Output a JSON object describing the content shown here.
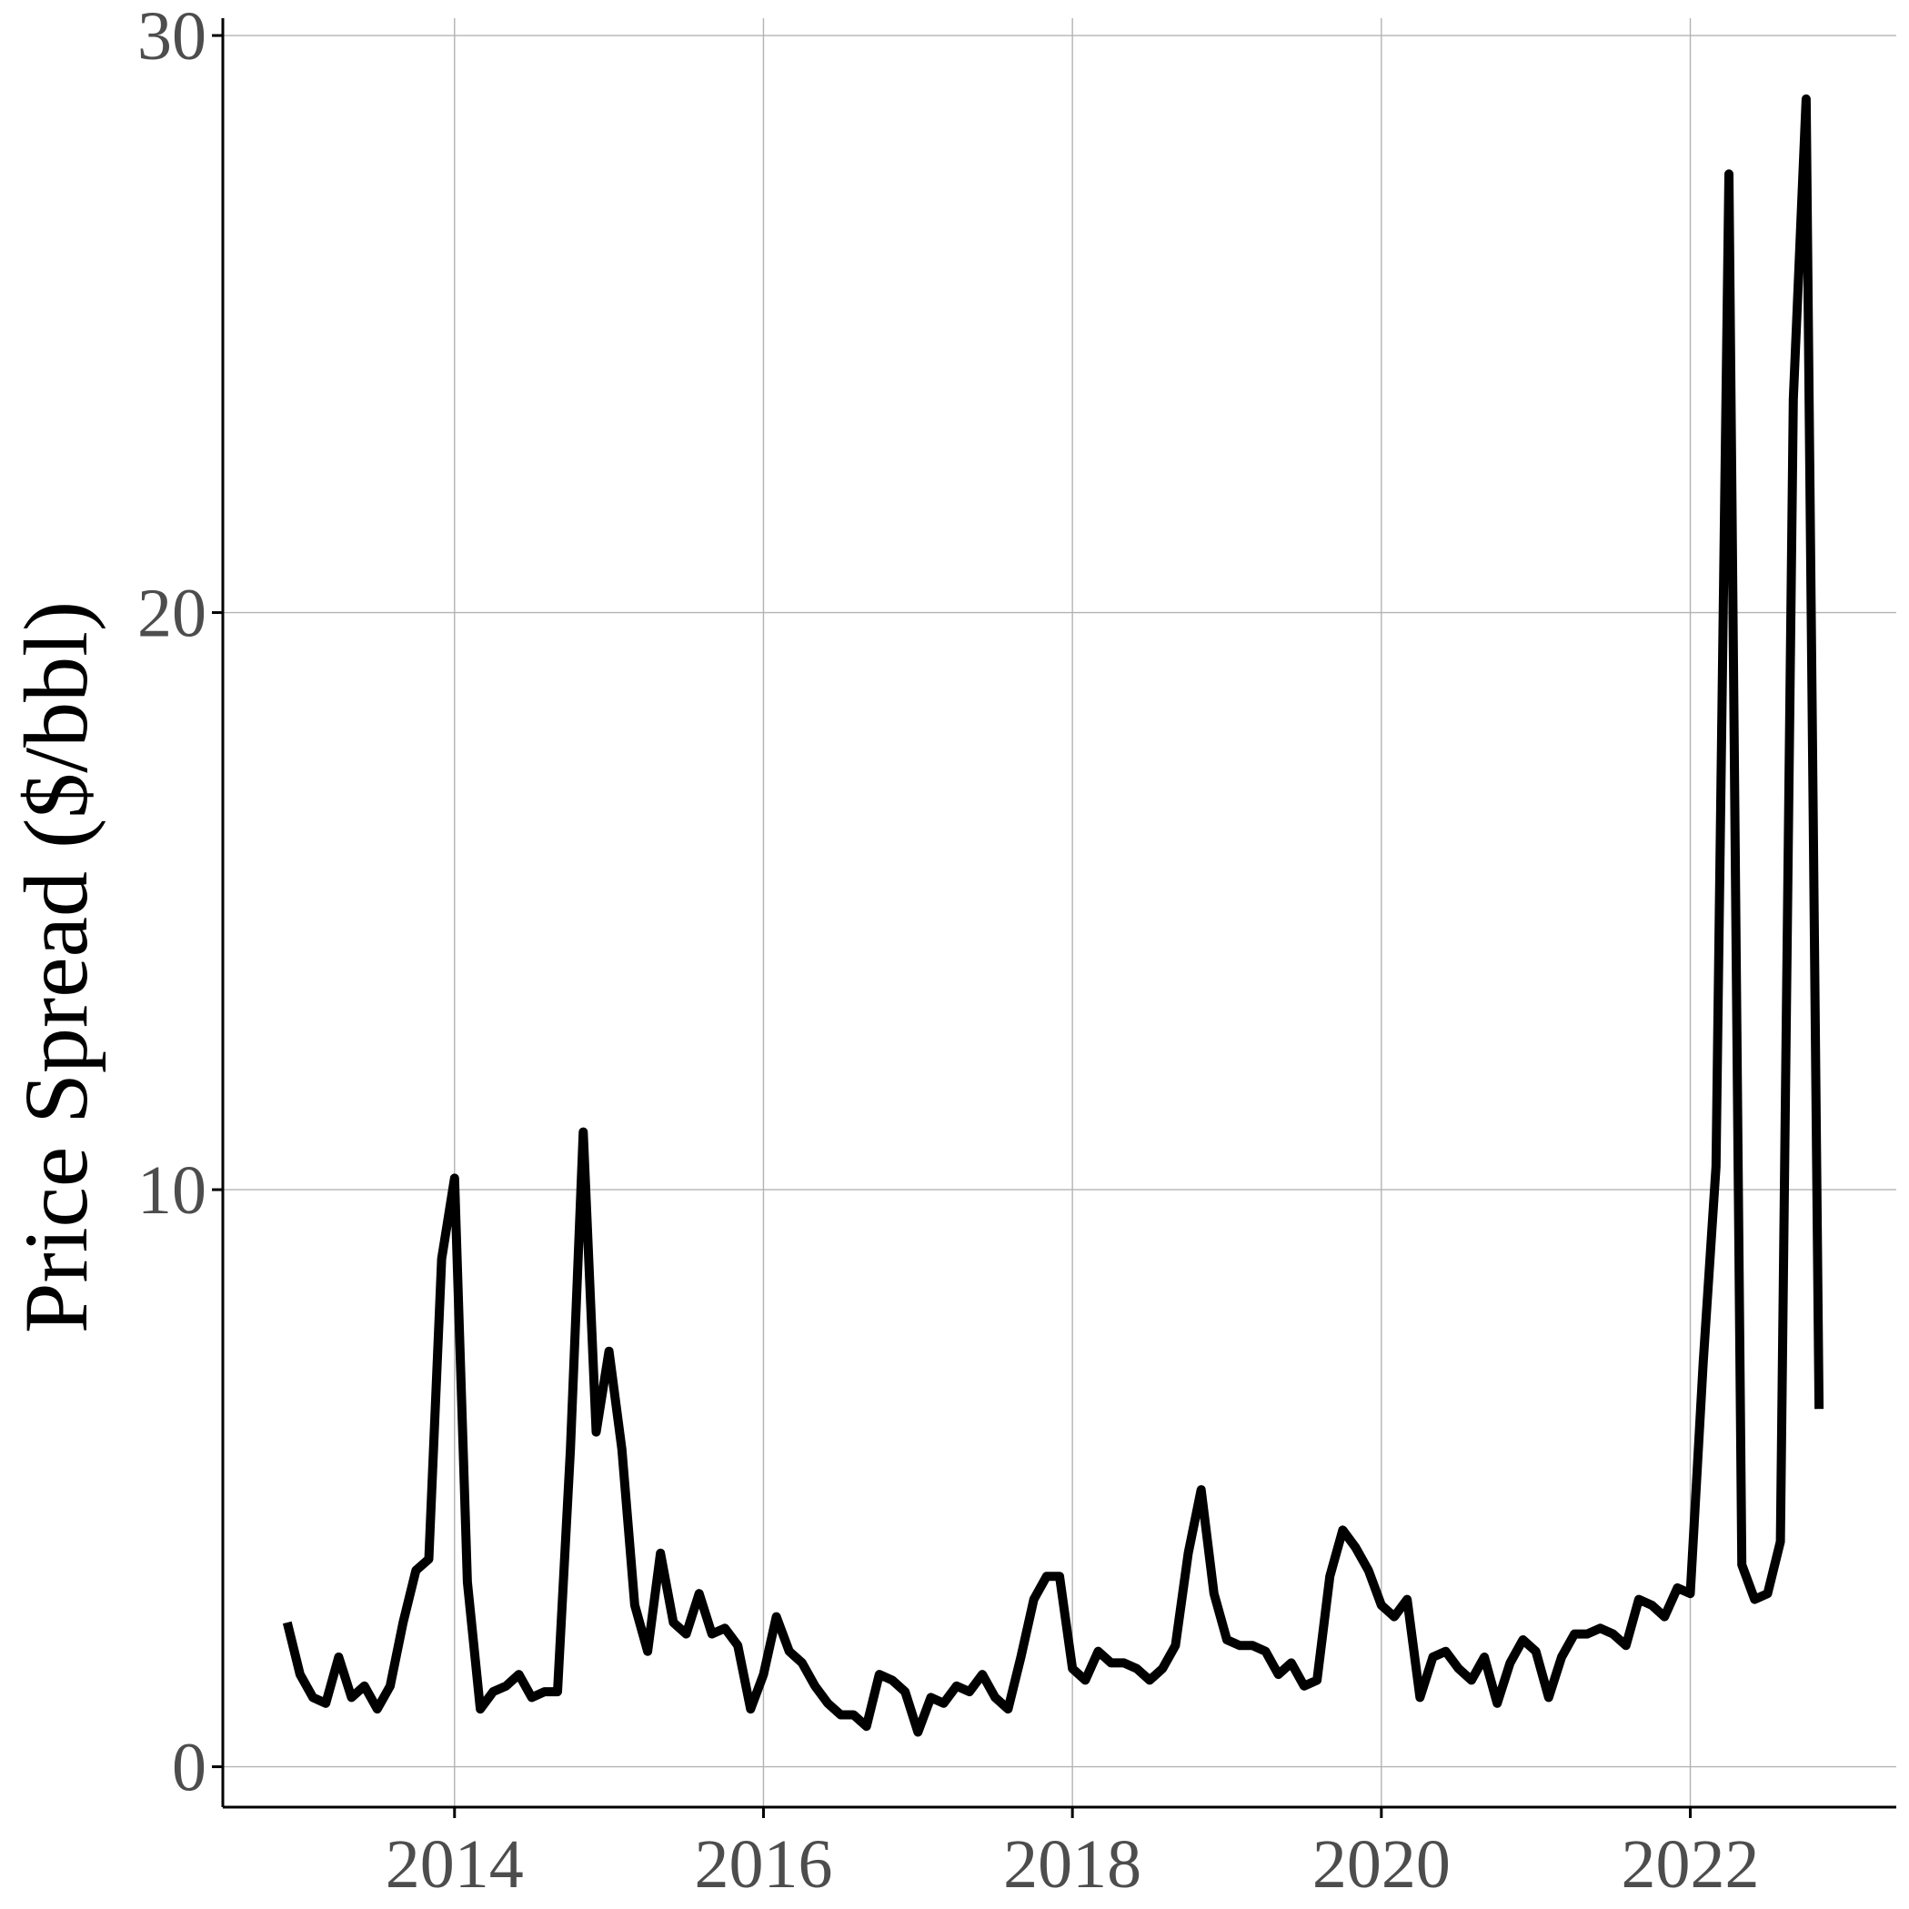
{
  "chart_data": {
    "type": "line",
    "title": "",
    "xlabel": "",
    "ylabel": "Price Spread ($/bbl)",
    "x_ticks": [
      "2014",
      "2016",
      "2018",
      "2020",
      "2022"
    ],
    "y_ticks": [
      "0",
      "10",
      "20",
      "30"
    ],
    "ylim": [
      -0.7,
      30.3
    ],
    "xlim": [
      "2012-07",
      "2023-05"
    ],
    "grid": "horizontal major",
    "legend": "none",
    "color": "#000000",
    "series": [
      {
        "values": [
          [
            "2012-12",
            2.5
          ],
          [
            "2013-01",
            1.6
          ],
          [
            "2013-02",
            1.2
          ],
          [
            "2013-03",
            1.1
          ],
          [
            "2013-04",
            1.9
          ],
          [
            "2013-05",
            1.2
          ],
          [
            "2013-06",
            1.4
          ],
          [
            "2013-07",
            1.0
          ],
          [
            "2013-08",
            1.4
          ],
          [
            "2013-09",
            2.5
          ],
          [
            "2013-10",
            3.4
          ],
          [
            "2013-11",
            3.6
          ],
          [
            "2013-12",
            8.8
          ],
          [
            "2014-01",
            10.2
          ],
          [
            "2014-02",
            3.2
          ],
          [
            "2014-03",
            1.0
          ],
          [
            "2014-04",
            1.3
          ],
          [
            "2014-05",
            1.4
          ],
          [
            "2014-06",
            1.6
          ],
          [
            "2014-07",
            1.2
          ],
          [
            "2014-08",
            1.3
          ],
          [
            "2014-09",
            1.3
          ],
          [
            "2014-10",
            5.5
          ],
          [
            "2014-11",
            11.0
          ],
          [
            "2014-12",
            5.8
          ],
          [
            "2015-01",
            7.2
          ],
          [
            "2015-02",
            5.5
          ],
          [
            "2015-03",
            2.8
          ],
          [
            "2015-04",
            2.0
          ],
          [
            "2015-05",
            3.7
          ],
          [
            "2015-06",
            2.5
          ],
          [
            "2015-07",
            2.3
          ],
          [
            "2015-08",
            3.0
          ],
          [
            "2015-09",
            2.3
          ],
          [
            "2015-10",
            2.4
          ],
          [
            "2015-11",
            2.1
          ],
          [
            "2015-12",
            1.0
          ],
          [
            "2016-01",
            1.6
          ],
          [
            "2016-02",
            2.6
          ],
          [
            "2016-03",
            2.0
          ],
          [
            "2016-04",
            1.8
          ],
          [
            "2016-05",
            1.4
          ],
          [
            "2016-06",
            1.1
          ],
          [
            "2016-07",
            0.9
          ],
          [
            "2016-08",
            0.9
          ],
          [
            "2016-09",
            0.7
          ],
          [
            "2016-10",
            1.6
          ],
          [
            "2016-11",
            1.5
          ],
          [
            "2016-12",
            1.3
          ],
          [
            "2017-01",
            0.6
          ],
          [
            "2017-02",
            1.2
          ],
          [
            "2017-03",
            1.1
          ],
          [
            "2017-04",
            1.4
          ],
          [
            "2017-05",
            1.3
          ],
          [
            "2017-06",
            1.6
          ],
          [
            "2017-07",
            1.2
          ],
          [
            "2017-08",
            1.0
          ],
          [
            "2017-09",
            1.9
          ],
          [
            "2017-10",
            2.9
          ],
          [
            "2017-11",
            3.3
          ],
          [
            "2017-12",
            3.3
          ],
          [
            "2018-01",
            1.7
          ],
          [
            "2018-02",
            1.5
          ],
          [
            "2018-03",
            2.0
          ],
          [
            "2018-04",
            1.8
          ],
          [
            "2018-05",
            1.8
          ],
          [
            "2018-06",
            1.7
          ],
          [
            "2018-07",
            1.5
          ],
          [
            "2018-08",
            1.7
          ],
          [
            "2018-09",
            2.1
          ],
          [
            "2018-10",
            3.7
          ],
          [
            "2018-11",
            4.8
          ],
          [
            "2018-12",
            3.0
          ],
          [
            "2019-01",
            2.2
          ],
          [
            "2019-02",
            2.1
          ],
          [
            "2019-03",
            2.1
          ],
          [
            "2019-04",
            2.0
          ],
          [
            "2019-05",
            1.6
          ],
          [
            "2019-06",
            1.8
          ],
          [
            "2019-07",
            1.4
          ],
          [
            "2019-08",
            1.5
          ],
          [
            "2019-09",
            3.3
          ],
          [
            "2019-10",
            4.1
          ],
          [
            "2019-11",
            3.8
          ],
          [
            "2019-12",
            3.4
          ],
          [
            "2020-01",
            2.8
          ],
          [
            "2020-02",
            2.6
          ],
          [
            "2020-03",
            2.9
          ],
          [
            "2020-04",
            1.2
          ],
          [
            "2020-05",
            1.9
          ],
          [
            "2020-06",
            2.0
          ],
          [
            "2020-07",
            1.7
          ],
          [
            "2020-08",
            1.5
          ],
          [
            "2020-09",
            1.9
          ],
          [
            "2020-10",
            1.1
          ],
          [
            "2020-11",
            1.8
          ],
          [
            "2020-12",
            2.2
          ],
          [
            "2021-01",
            2.0
          ],
          [
            "2021-02",
            1.2
          ],
          [
            "2021-03",
            1.9
          ],
          [
            "2021-04",
            2.3
          ],
          [
            "2021-05",
            2.3
          ],
          [
            "2021-06",
            2.4
          ],
          [
            "2021-07",
            2.3
          ],
          [
            "2021-08",
            2.1
          ],
          [
            "2021-09",
            2.9
          ],
          [
            "2021-10",
            2.8
          ],
          [
            "2021-11",
            2.6
          ],
          [
            "2021-12",
            3.1
          ],
          [
            "2022-01",
            3.0
          ],
          [
            "2022-02",
            7.0
          ],
          [
            "2022-03",
            10.4
          ],
          [
            "2022-04",
            27.6
          ],
          [
            "2022-05",
            3.5
          ],
          [
            "2022-06",
            2.9
          ],
          [
            "2022-07",
            3.0
          ],
          [
            "2022-08",
            3.9
          ],
          [
            "2022-09",
            23.7
          ],
          [
            "2022-10",
            28.9
          ],
          [
            "2022-11",
            6.2
          ]
        ]
      }
    ]
  }
}
